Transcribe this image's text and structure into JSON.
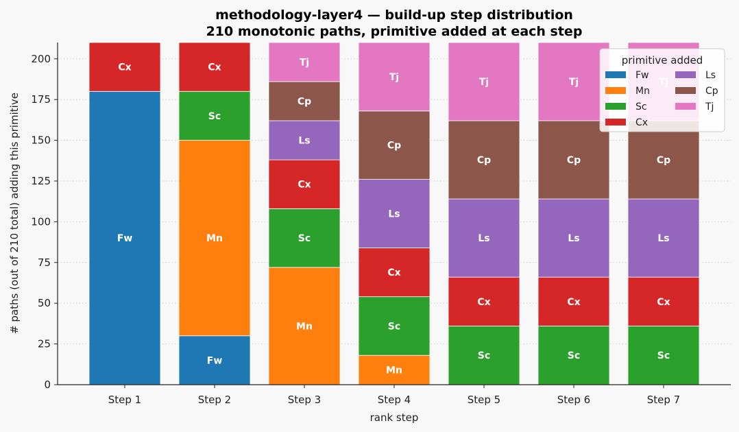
{
  "chart_data": {
    "type": "bar",
    "stacked": true,
    "title": "methodology-layer4 — build-up step distribution",
    "subtitle": "210 monotonic paths, primitive added at each step",
    "xlabel": "rank step",
    "ylabel": "# paths (out of 210 total) adding this primitive",
    "ylim": [
      0,
      210
    ],
    "yticks": [
      0,
      25,
      50,
      75,
      100,
      125,
      150,
      175,
      200
    ],
    "grid": "horizontal dotted",
    "categories": [
      "Step 1",
      "Step 2",
      "Step 3",
      "Step 4",
      "Step 5",
      "Step 6",
      "Step 7"
    ],
    "series": [
      {
        "name": "Fw",
        "color": "#1f77b4",
        "values": [
          180,
          30,
          0,
          0,
          0,
          0,
          0
        ]
      },
      {
        "name": "Mn",
        "color": "#ff7f0e",
        "values": [
          0,
          120,
          72,
          18,
          0,
          0,
          0
        ]
      },
      {
        "name": "Sc",
        "color": "#2ca02c",
        "values": [
          0,
          30,
          36,
          36,
          36,
          36,
          36
        ]
      },
      {
        "name": "Cx",
        "color": "#d62728",
        "values": [
          30,
          30,
          30,
          30,
          30,
          30,
          30
        ]
      },
      {
        "name": "Ls",
        "color": "#9467bd",
        "values": [
          0,
          0,
          24,
          42,
          48,
          48,
          48
        ]
      },
      {
        "name": "Cp",
        "color": "#8c564b",
        "values": [
          0,
          0,
          24,
          42,
          48,
          48,
          48
        ]
      },
      {
        "name": "Tj",
        "color": "#e377c2",
        "values": [
          0,
          0,
          24,
          42,
          48,
          48,
          48
        ]
      }
    ],
    "legend": {
      "title": "primitive added",
      "placement": "top-right",
      "columns": 2
    }
  }
}
